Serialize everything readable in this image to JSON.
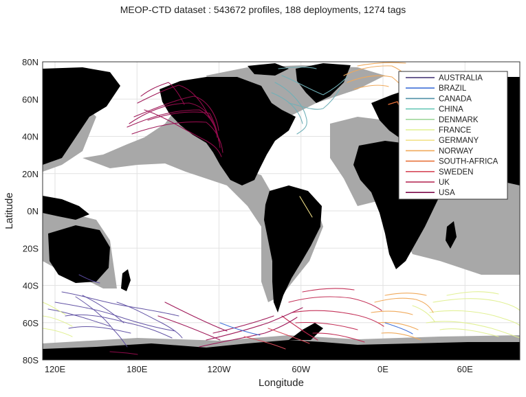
{
  "title": "MEOP-CTD dataset : 543672 profiles, 188 deployments, 1274 tags",
  "axes": {
    "xlabel": "Longitude",
    "ylabel": "Latitude",
    "xticks": [
      "120E",
      "180E",
      "120W",
      "60W",
      "0E",
      "60E"
    ],
    "yticks": [
      "80N",
      "60N",
      "40N",
      "20N",
      "0N",
      "20S",
      "40S",
      "60S",
      "80S"
    ],
    "grid": true
  },
  "legend": {
    "placement": "top-right",
    "entries": [
      {
        "name": "AUSTRALIA",
        "color": "#3b2a6e"
      },
      {
        "name": "BRAZIL",
        "color": "#3f6fd8"
      },
      {
        "name": "CANADA",
        "color": "#4d8fa6"
      },
      {
        "name": "CHINA",
        "color": "#67c7b6"
      },
      {
        "name": "DENMARK",
        "color": "#9fd79b"
      },
      {
        "name": "FRANCE",
        "color": "#e0f08f"
      },
      {
        "name": "GERMANY",
        "color": "#f2e28a"
      },
      {
        "name": "NORWAY",
        "color": "#f0a95a"
      },
      {
        "name": "SOUTH-AFRICA",
        "color": "#e8723a"
      },
      {
        "name": "SWEDEN",
        "color": "#d64a5a"
      },
      {
        "name": "UK",
        "color": "#b01e4c"
      },
      {
        "name": "USA",
        "color": "#7c0a4a"
      }
    ]
  },
  "colors": {
    "land": "#000000",
    "shelf": "#a8a8a8",
    "ocean": "#ffffff",
    "australia_tracks": "#5a4aa0",
    "france_tracks": "#e0f08f",
    "uk_tracks": "#c0244e",
    "usa_tracks": "#9a0c50",
    "canada_tracks": "#6fb0b8",
    "norway_tracks": "#f0a95a"
  }
}
